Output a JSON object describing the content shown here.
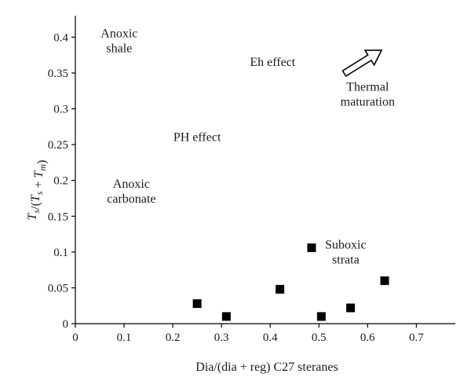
{
  "chart_data": {
    "type": "scatter",
    "title": "",
    "xlabel": "Dia/(dia + reg) C27 steranes",
    "ylabel": "T_s/(T_s + T_m)",
    "xlim": [
      0,
      0.78
    ],
    "ylim": [
      0,
      0.43
    ],
    "x_ticks": [
      "0",
      "0.1",
      "0.2",
      "0.3",
      "0.4",
      "0.5",
      "0.6",
      "0.7"
    ],
    "y_ticks": [
      "0",
      "0.05",
      "0.1",
      "0.15",
      "0.2",
      "0.25",
      "0.3",
      "0.35",
      "0.4"
    ],
    "grid": false,
    "marker": "square",
    "marker_color": "#000000",
    "series": [
      {
        "points": [
          {
            "x": 0.25,
            "y": 0.028
          },
          {
            "x": 0.31,
            "y": 0.01
          },
          {
            "x": 0.42,
            "y": 0.048
          },
          {
            "x": 0.485,
            "y": 0.106
          },
          {
            "x": 0.505,
            "y": 0.01
          },
          {
            "x": 0.565,
            "y": 0.022
          },
          {
            "x": 0.635,
            "y": 0.06
          }
        ]
      }
    ],
    "annotations": [
      {
        "id": "anoxic-shale",
        "lines": [
          "Anoxic",
          "shale"
        ],
        "x": 0.09,
        "y": 0.4
      },
      {
        "id": "eh-effect",
        "lines": [
          "Eh effect"
        ],
        "x": 0.405,
        "y": 0.36
      },
      {
        "id": "thermal-maturation",
        "lines": [
          "Thermal",
          "maturation"
        ],
        "x": 0.6,
        "y": 0.325,
        "arrow": true
      },
      {
        "id": "ph-effect",
        "lines": [
          "PH effect"
        ],
        "x": 0.25,
        "y": 0.255
      },
      {
        "id": "anoxic-carbonate",
        "lines": [
          "Anoxic",
          "carbonate"
        ],
        "x": 0.115,
        "y": 0.19
      },
      {
        "id": "suboxic-strata",
        "lines": [
          "Suboxic",
          "strata"
        ],
        "x": 0.555,
        "y": 0.105
      }
    ]
  }
}
